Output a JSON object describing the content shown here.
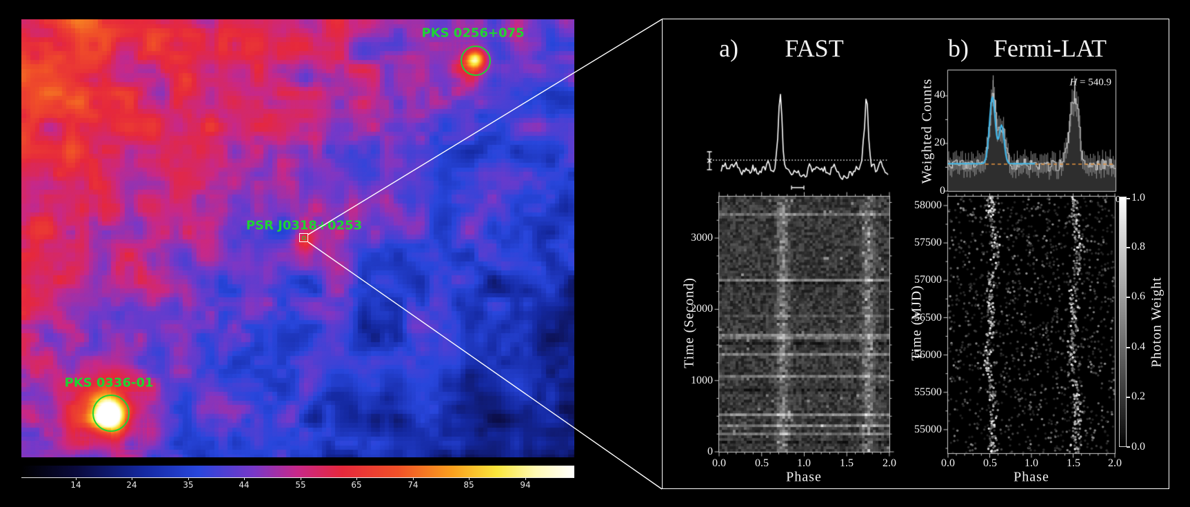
{
  "sky_map": {
    "label_color": "#1fd334",
    "sources": [
      {
        "label": "PKS 0256+075"
      },
      {
        "label": "PSR J0318+0253"
      },
      {
        "label": "PKS 0336-01"
      }
    ],
    "colorbar": {
      "ticks": [
        "14",
        "24",
        "35",
        "44",
        "55",
        "65",
        "74",
        "85",
        "94"
      ]
    }
  },
  "inset": {
    "panel_a": {
      "tag": "a)",
      "title": "FAST"
    },
    "panel_b": {
      "tag": "b)",
      "title": "Fermi-LAT",
      "h_annotation_prefix": "H",
      "h_annotation_rest": " = 540.9",
      "partial_tick": "0"
    }
  },
  "fast": {
    "pt": {
      "ylabel": "Time (Second)",
      "xlabel": "Phase",
      "yticks": [
        "0",
        "1000",
        "2000",
        "3000"
      ],
      "xticks": [
        "0.0",
        "0.5",
        "1.0",
        "1.5",
        "2.0"
      ]
    }
  },
  "fermi": {
    "top": {
      "ylabel": "Weighted Counts",
      "yticks": [
        "0",
        "20",
        "40"
      ]
    },
    "pt": {
      "ylabel": "Time (MJD)",
      "xlabel": "Phase",
      "yticks": [
        "55000",
        "55500",
        "56000",
        "56500",
        "57000",
        "57500",
        "58000"
      ],
      "xticks": [
        "0.0",
        "0.5",
        "1.0",
        "1.5",
        "2.0"
      ]
    },
    "colorbar": {
      "label": "Photon Weight",
      "ticks": [
        "0.0",
        "0.2",
        "0.4",
        "0.6",
        "0.8",
        "1.0"
      ]
    }
  },
  "chart_data": [
    {
      "id": "sky_map",
      "type": "heatmap",
      "description": "Smoothed gamma-ray counts map with sources PKS 0256+075, PSR J0318+0253, PKS 0336-01",
      "colormap_positions": [
        0,
        0.1,
        0.22,
        0.32,
        0.42,
        0.5,
        0.58,
        0.68,
        0.78,
        0.86,
        0.93,
        1
      ],
      "colormap_colors": [
        "#000000",
        "#0a0a3c",
        "#1428a0",
        "#2846dc",
        "#7838c8",
        "#c82888",
        "#e6283c",
        "#f05028",
        "#faa01e",
        "#fae63c",
        "#fffab4",
        "#ffffff"
      ],
      "colorbar_tick_values": [
        14,
        24,
        35,
        44,
        55,
        65,
        74,
        85,
        94
      ],
      "ramp": {
        "base": 66,
        "slope": 46,
        "wx": 0.6,
        "wy": 0.52
      },
      "noise_amp": 28,
      "seed": 7,
      "sources": [
        {
          "name": "PKS 0256+075",
          "fx": 0.819,
          "fy": 0.091,
          "amp": 44,
          "sigma": 10
        },
        {
          "name": "PKS 0256+075 halo",
          "fx": 0.819,
          "fy": 0.091,
          "amp": 13,
          "sigma": 26
        },
        {
          "name": "PSR J0318+0253",
          "fx": 0.511,
          "fy": 0.501,
          "amp": 17,
          "sigma": 13
        },
        {
          "name": "PKS 0336-01",
          "fx": 0.158,
          "fy": 0.901,
          "amp": 62,
          "sigma": 16
        },
        {
          "name": "PKS 0336-01 halo",
          "fx": 0.158,
          "fy": 0.901,
          "amp": 26,
          "sigma": 46
        }
      ]
    },
    {
      "id": "fast_profile",
      "type": "line",
      "description": "FAST integrated radio pulse profile, arbitrary flux units, dotted baseline with left error bar",
      "x_range": [
        0,
        2
      ],
      "peaks": [
        {
          "phase": 0.75,
          "height": 1.0,
          "sigma": 0.022
        },
        {
          "phase": 1.75,
          "height": 0.96,
          "sigma": 0.022
        }
      ],
      "baseline_style": "dotted",
      "seed": 3
    },
    {
      "id": "fast_phase_time",
      "type": "heatmap",
      "xlabel": "Phase",
      "ylabel": "Time (Second)",
      "x_range": [
        0,
        2
      ],
      "y_range": [
        0,
        3582
      ],
      "band_phases": [
        0.75,
        1.75
      ],
      "band_sigma": 0.05,
      "cols": 62,
      "rows": 93,
      "seed": 11
    },
    {
      "id": "fermi_profile",
      "type": "bar",
      "xlabel": "Phase",
      "ylabel": "Weighted Counts",
      "x_range": [
        0,
        2
      ],
      "y_range": [
        0,
        50.7
      ],
      "yticks": [
        0,
        20,
        40
      ],
      "bins": 110,
      "baseline_level": 11.3,
      "peaks": [
        {
          "phase": 0.54,
          "amplitude": 28.5,
          "sigma": 0.042
        },
        {
          "phase": 0.65,
          "amplitude": 14,
          "sigma": 0.035
        },
        {
          "phase": 1.5,
          "amplitude": 27,
          "sigma": 0.05
        },
        {
          "phase": 1.56,
          "amplitude": 8,
          "sigma": 0.02
        }
      ],
      "fit_curve": {
        "color": "#41b6e8",
        "range": [
          0,
          1.05
        ],
        "baseline": 11.5,
        "components": [
          {
            "phase": 0.53,
            "amplitude": 28,
            "sigma": 0.035
          },
          {
            "phase": 0.64,
            "amplitude": 16,
            "sigma": 0.03
          }
        ]
      },
      "dashed_baseline_color": "#e39440",
      "h_test": 540.9,
      "seed": 5
    },
    {
      "id": "fermi_phase_time",
      "type": "scatter",
      "xlabel": "Phase",
      "ylabel": "Time (MJD)",
      "x_range": [
        0,
        2
      ],
      "y_range": [
        54685,
        58120
      ],
      "band_phases": [
        0.52,
        1.52
      ],
      "n_background": 1400,
      "n_band": 560,
      "weight_range": [
        0,
        1
      ],
      "seed": 9
    }
  ]
}
